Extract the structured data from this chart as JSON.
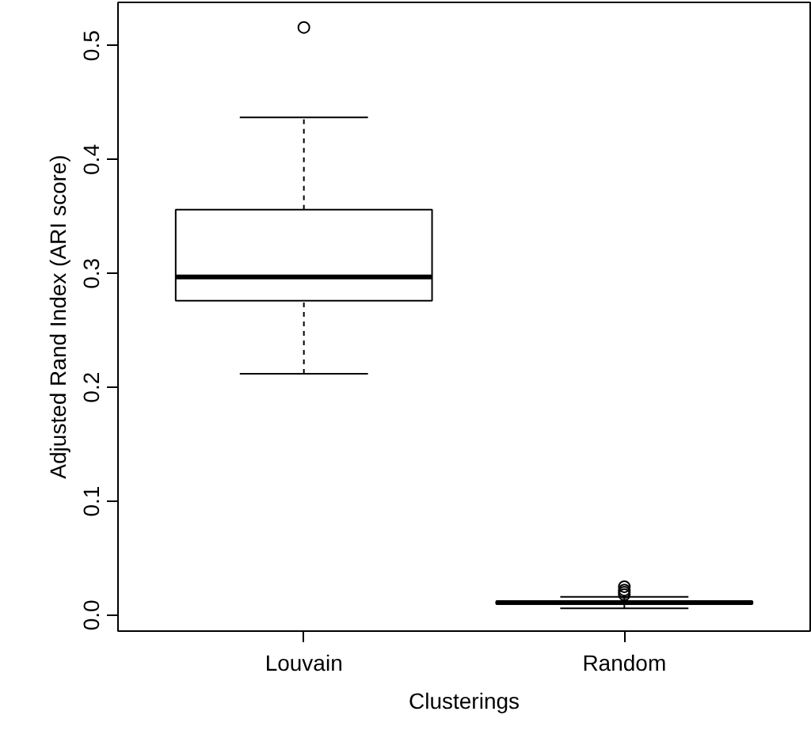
{
  "chart_data": {
    "type": "box",
    "xlabel": "Clusterings",
    "ylabel": "Adjusted Rand Index (ARI score)",
    "categories": [
      "Louvain",
      "Random"
    ],
    "boxes": [
      {
        "low": 0.212,
        "q1": 0.276,
        "median": 0.297,
        "q3": 0.356,
        "high": 0.437,
        "outliers": [
          0.516
        ]
      },
      {
        "low": 0.006,
        "q1": 0.01,
        "median": 0.011,
        "q3": 0.012,
        "high": 0.016,
        "outliers": [
          0.018,
          0.02,
          0.022,
          0.025
        ]
      }
    ],
    "color": "#000000",
    "ylim": [
      -0.014,
      0.538
    ],
    "yticks": [
      {
        "value": 0,
        "label": "0.0"
      },
      0.1,
      0.2,
      0.3,
      0.4,
      0.5
    ],
    "grid": false
  }
}
